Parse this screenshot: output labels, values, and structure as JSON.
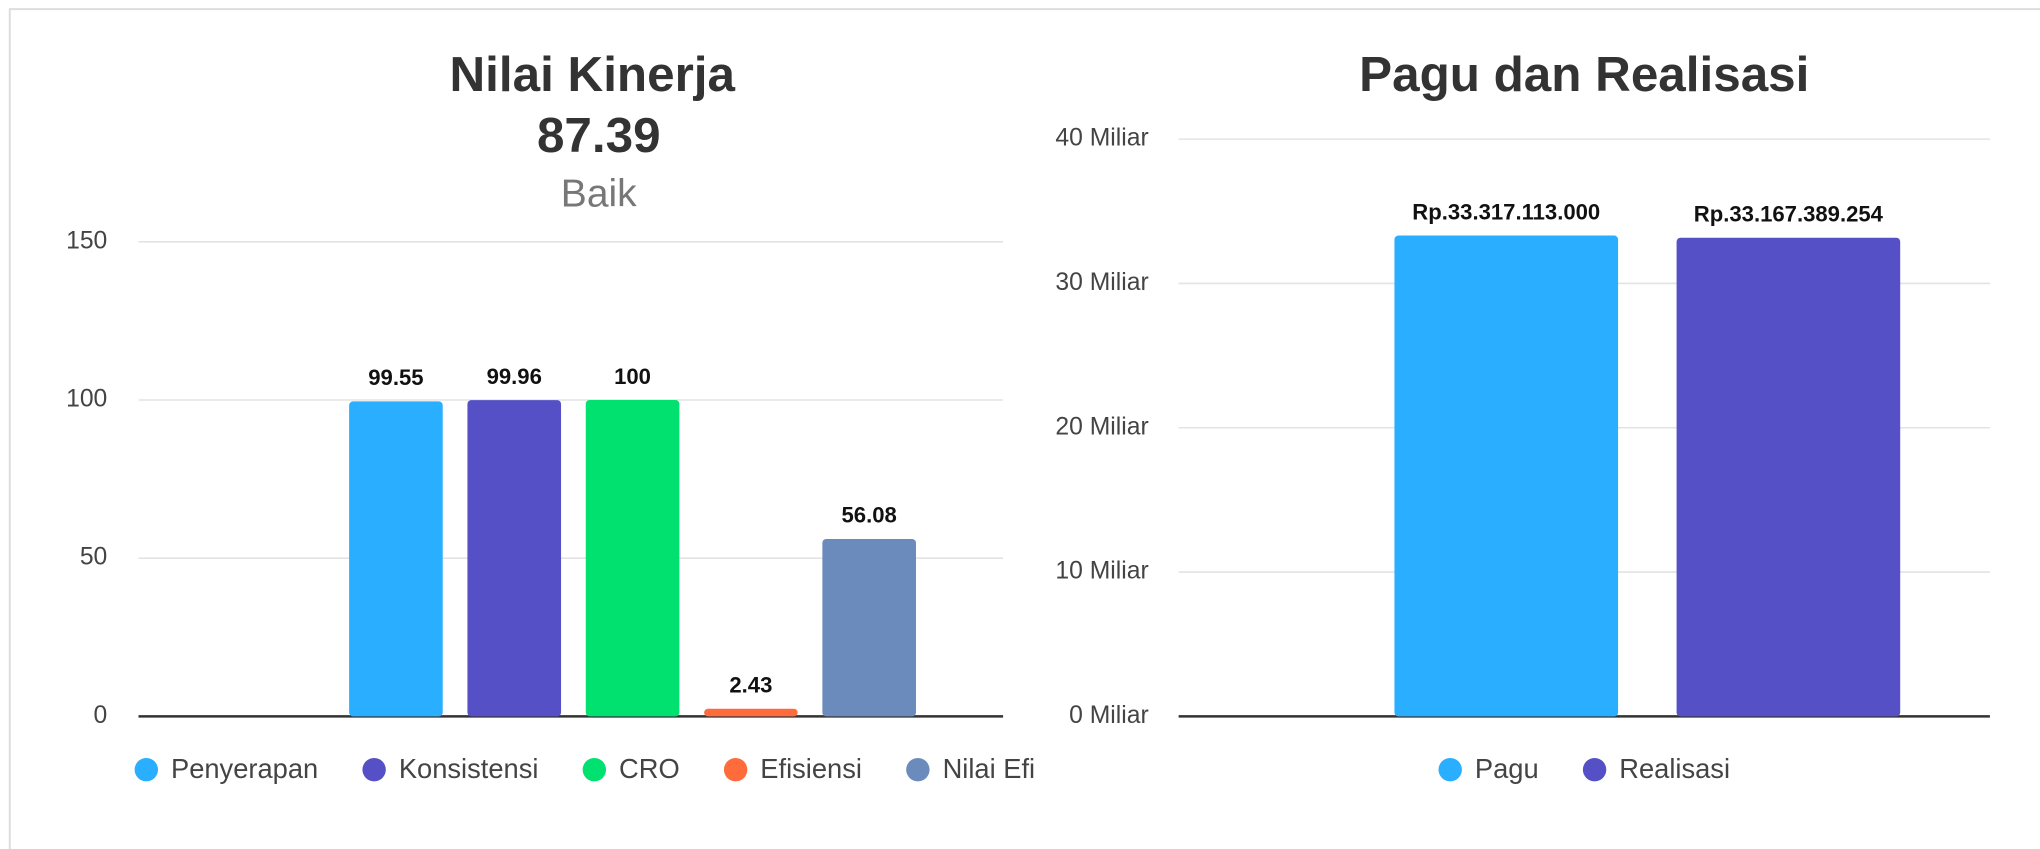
{
  "chart_data": [
    {
      "type": "bar",
      "title": "Nilai Kinerja",
      "subtitle": "87.39",
      "rating": "Baik",
      "categories": [
        null
      ],
      "series": [
        {
          "name": "Penyerapan",
          "color": "#2aaeff",
          "values": [
            99.55
          ]
        },
        {
          "name": "Konsistensi",
          "color": "#5550c6",
          "values": [
            99.96
          ]
        },
        {
          "name": "CRO",
          "color": "#00e16f",
          "values": [
            100
          ]
        },
        {
          "name": "Efisiensi",
          "color": "#ff6b3b",
          "values": [
            2.43
          ]
        },
        {
          "name": "Nilai Efi",
          "color": "#6c8bbd",
          "values": [
            56.08
          ]
        }
      ],
      "ylim": [
        0,
        150
      ],
      "yticks": [
        0,
        50,
        100,
        150
      ],
      "grid": true
    },
    {
      "type": "bar",
      "title": "Pagu dan Realisasi",
      "categories": [
        null
      ],
      "series": [
        {
          "name": "Pagu",
          "color": "#2aaeff",
          "values": [
            33317113000
          ],
          "value_labels": [
            "Rp.33.317.113.000"
          ]
        },
        {
          "name": "Realisasi",
          "color": "#5550c6",
          "values": [
            33167389254
          ],
          "value_labels": [
            "Rp.33.167.389.254"
          ]
        }
      ],
      "ylim": [
        0,
        40000000000
      ],
      "yticks": [
        {
          "value": 0,
          "label": "0 Miliar"
        },
        {
          "value": 10000000000,
          "label": "10 Miliar"
        },
        {
          "value": 20000000000,
          "label": "20 Miliar"
        },
        {
          "value": 30000000000,
          "label": "30 Miliar"
        },
        {
          "value": 40000000000,
          "label": "40 Miliar"
        }
      ],
      "grid": true
    }
  ]
}
